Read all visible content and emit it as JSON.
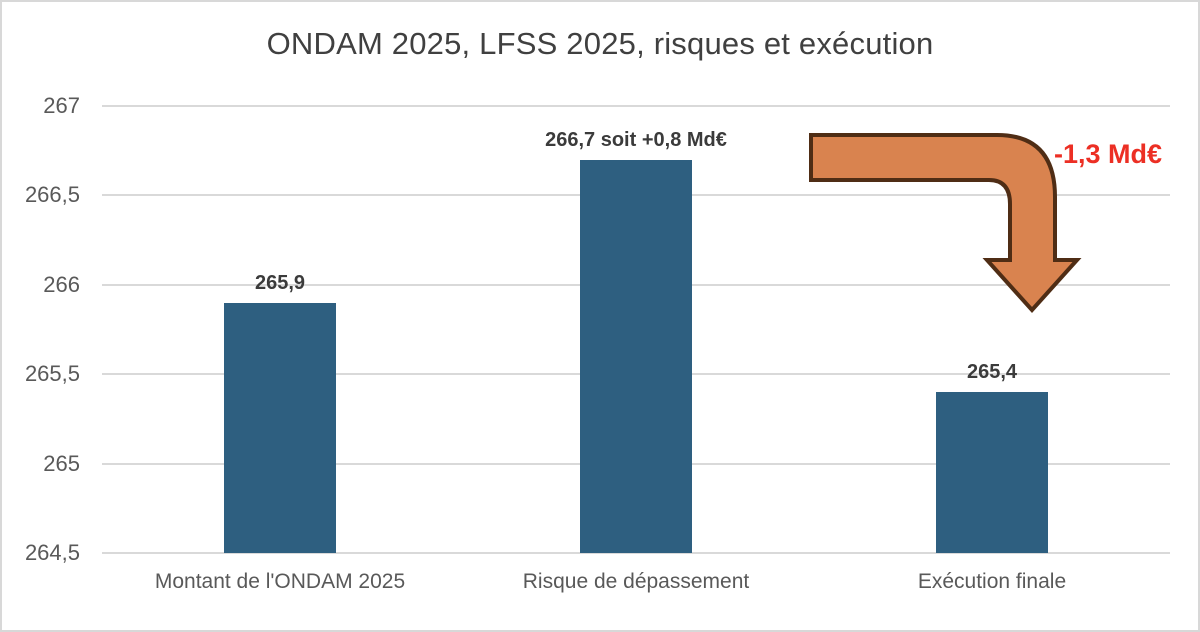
{
  "chart_data": {
    "type": "bar",
    "title": "ONDAM 2025, LFSS 2025, risques et exécution",
    "categories": [
      "Montant de l'ONDAM 2025",
      "Risque de dépassement",
      "Exécution finale"
    ],
    "values": [
      265.9,
      266.7,
      265.4
    ],
    "bar_labels": [
      "265,9",
      "266,7 soit +0,8 Md€",
      "265,4"
    ],
    "ylim": [
      264.5,
      267
    ],
    "yticks": [
      {
        "label": "267",
        "value": 267
      },
      {
        "label": "266,5",
        "value": 266.5
      },
      {
        "label": "266",
        "value": 266
      },
      {
        "label": "265,5",
        "value": 265.5
      },
      {
        "label": "265",
        "value": 265
      },
      {
        "label": "264,5",
        "value": 264.5
      }
    ],
    "grid": "horizontal",
    "legend_position": "none",
    "bar_color": "#2E5F80",
    "gridline_color": "#D9D9D9",
    "annotation": {
      "text": "-1,3 Md€",
      "color": "#EC2F24",
      "arrow_fill": "#D9834F",
      "arrow_stroke": "#4F2D15"
    }
  }
}
